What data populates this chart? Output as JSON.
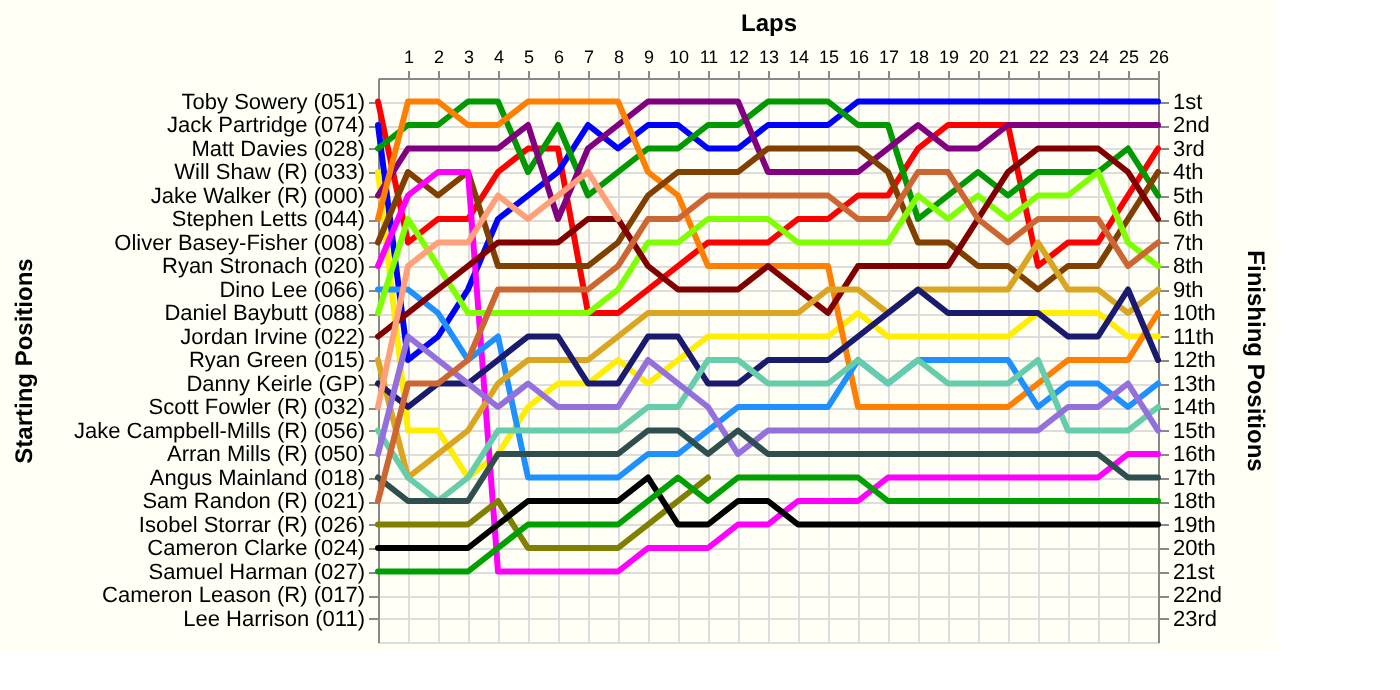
{
  "chart_data": {
    "type": "line",
    "xlabel": "Laps",
    "y2label": "Finishing Positions",
    "x": [
      0,
      1,
      2,
      3,
      4,
      5,
      6,
      7,
      8,
      9,
      10,
      11,
      12,
      13,
      14,
      15,
      16,
      17,
      18,
      19,
      20,
      21,
      22,
      23,
      24,
      25,
      26
    ],
    "xlim": [
      0,
      26
    ],
    "xticks": [
      1,
      2,
      3,
      4,
      5,
      6,
      7,
      8,
      9,
      10,
      11,
      12,
      13,
      14,
      15,
      16,
      17,
      18,
      19,
      20,
      21,
      22,
      23,
      24,
      25,
      26
    ],
    "ylim": [
      24,
      0
    ],
    "yticks": [
      {
        "value": 1,
        "label": "1st"
      },
      {
        "value": 2,
        "label": "2nd"
      },
      {
        "value": 3,
        "label": "3rd"
      },
      {
        "value": 4,
        "label": "4th"
      },
      {
        "value": 5,
        "label": "5th"
      },
      {
        "value": 6,
        "label": "6th"
      },
      {
        "value": 7,
        "label": "7th"
      },
      {
        "value": 8,
        "label": "8th"
      },
      {
        "value": 9,
        "label": "9th"
      },
      {
        "value": 10,
        "label": "10th"
      },
      {
        "value": 11,
        "label": "11th"
      },
      {
        "value": 12,
        "label": "12th"
      },
      {
        "value": 13,
        "label": "13th"
      },
      {
        "value": 14,
        "label": "14th"
      },
      {
        "value": 15,
        "label": "15th"
      },
      {
        "value": 16,
        "label": "16th"
      },
      {
        "value": 17,
        "label": "17th"
      },
      {
        "value": 18,
        "label": "18th"
      },
      {
        "value": 19,
        "label": "19th"
      },
      {
        "value": 20,
        "label": "20th"
      },
      {
        "value": 21,
        "label": "21st"
      },
      {
        "value": 22,
        "label": "22nd"
      },
      {
        "value": 23,
        "label": "23rd"
      }
    ],
    "grid": true,
    "line_style": "solid",
    "annotations": [
      "Starting Positions",
      "Cameron Leason (R) (017)",
      "Lee Harrison (011)"
    ],
    "series": [
      {
        "name": "Toby Sowery (051)",
        "color": "#ff0000",
        "values": [
          1,
          7,
          6,
          6,
          4,
          3,
          3,
          10,
          10,
          9,
          8,
          7,
          7,
          7,
          6,
          6,
          5,
          5,
          3,
          2,
          2,
          2,
          8,
          7,
          7,
          5,
          3
        ]
      },
      {
        "name": "Jack Partridge (074)",
        "color": "#0000ff",
        "values": [
          2,
          12,
          11,
          9,
          6,
          5,
          4,
          2,
          3,
          2,
          2,
          3,
          3,
          2,
          2,
          2,
          1,
          1,
          1,
          1,
          1,
          1,
          1,
          1,
          1,
          1,
          1
        ]
      },
      {
        "name": "Matt Davies (028)",
        "color": "#009900",
        "values": [
          3,
          2,
          2,
          1,
          1,
          4,
          2,
          5,
          4,
          3,
          3,
          2,
          2,
          1,
          1,
          1,
          2,
          2,
          6,
          5,
          4,
          5,
          4,
          4,
          4,
          3,
          5
        ]
      },
      {
        "name": "Will Shaw  (R) (033)",
        "color": "#ffee00",
        "values": [
          4,
          15,
          15,
          17,
          16,
          14,
          13,
          13,
          12,
          13,
          12,
          11,
          11,
          11,
          11,
          11,
          10,
          11,
          11,
          11,
          11,
          11,
          10,
          10,
          10,
          11,
          11
        ]
      },
      {
        "name": "Jake Walker (R) (000)",
        "color": "#800080",
        "values": [
          5,
          3,
          3,
          3,
          3,
          2,
          6,
          3,
          2,
          1,
          1,
          1,
          1,
          4,
          4,
          4,
          4,
          3,
          2,
          3,
          3,
          2,
          2,
          2,
          2,
          2,
          2
        ]
      },
      {
        "name": "Stephen Letts (044)",
        "color": "#ff8000",
        "values": [
          6,
          1,
          1,
          2,
          2,
          1,
          1,
          1,
          1,
          4,
          5,
          8,
          8,
          8,
          8,
          8,
          14,
          14,
          14,
          14,
          14,
          14,
          13,
          12,
          12,
          12,
          10
        ]
      },
      {
        "name": "Oliver Basey-Fisher (008)",
        "color": "#804000",
        "values": [
          7,
          4,
          5,
          4,
          8,
          8,
          8,
          8,
          7,
          5,
          4,
          4,
          4,
          3,
          3,
          3,
          3,
          4,
          7,
          7,
          8,
          8,
          9,
          8,
          8,
          6,
          4
        ]
      },
      {
        "name": "Ryan Stronach (020)",
        "color": "#ff00ff",
        "values": [
          8,
          5,
          4,
          4,
          21,
          21,
          21,
          21,
          21,
          20,
          20,
          20,
          19,
          19,
          18,
          18,
          18,
          17,
          17,
          17,
          17,
          17,
          17,
          17,
          17,
          16,
          16
        ]
      },
      {
        "name": "Dino Lee (066)",
        "color": "#1e90ff",
        "values": [
          9,
          9,
          10,
          12,
          11,
          17,
          17,
          17,
          17,
          16,
          16,
          15,
          14,
          14,
          14,
          14,
          12,
          13,
          12,
          12,
          12,
          12,
          14,
          13,
          13,
          14,
          13
        ]
      },
      {
        "name": "Daniel Baybutt (088)",
        "color": "#80ff00",
        "values": [
          10,
          6,
          8,
          10,
          10,
          10,
          10,
          10,
          9,
          7,
          7,
          6,
          6,
          6,
          7,
          7,
          7,
          7,
          5,
          6,
          5,
          6,
          5,
          5,
          4,
          7,
          8
        ]
      },
      {
        "name": "Jordan Irvine (022)",
        "color": "#800000",
        "values": [
          11,
          10,
          9,
          8,
          7,
          7,
          7,
          6,
          6,
          8,
          9,
          9,
          9,
          8,
          9,
          10,
          8,
          8,
          8,
          8,
          6,
          4,
          3,
          3,
          3,
          4,
          6
        ]
      },
      {
        "name": "Ryan Green (015)",
        "color": "#daa520",
        "values": [
          12,
          17,
          16,
          15,
          13,
          12,
          12,
          12,
          11,
          10,
          10,
          10,
          10,
          10,
          10,
          9,
          9,
          10,
          9,
          9,
          9,
          9,
          7,
          9,
          9,
          10,
          9
        ]
      },
      {
        "name": "Danny Keirle (GP)",
        "color": "#1a1a6e",
        "values": [
          13,
          14,
          13,
          13,
          12,
          11,
          11,
          13,
          13,
          11,
          11,
          13,
          13,
          12,
          12,
          12,
          11,
          10,
          9,
          10,
          10,
          10,
          10,
          11,
          11,
          9,
          12
        ]
      },
      {
        "name": "Scott Fowler (R) (032)",
        "color": "#ffa07a",
        "values": [
          14,
          8,
          7,
          7,
          5,
          6,
          5,
          4,
          6,
          null,
          null,
          null,
          null,
          null,
          null,
          null,
          null,
          null,
          null,
          null,
          null,
          null,
          null,
          null,
          null,
          null,
          null
        ]
      },
      {
        "name": "Jake Campbell-Mills (R) (056)",
        "color": "#66cdaa",
        "values": [
          15,
          17,
          18,
          17,
          15,
          15,
          15,
          15,
          15,
          14,
          14,
          12,
          12,
          13,
          13,
          13,
          12,
          13,
          12,
          13,
          13,
          13,
          12,
          15,
          15,
          15,
          14
        ]
      },
      {
        "name": "Arran Mills (R) (050)",
        "color": "#9370db",
        "values": [
          16,
          11,
          12,
          13,
          14,
          13,
          14,
          14,
          14,
          12,
          13,
          14,
          16,
          15,
          15,
          15,
          15,
          15,
          15,
          15,
          15,
          15,
          15,
          14,
          14,
          13,
          15
        ]
      },
      {
        "name": "Angus Mainland (018)",
        "color": "#2f4f4f",
        "values": [
          17,
          18,
          18,
          18,
          16,
          16,
          16,
          16,
          16,
          15,
          15,
          16,
          15,
          16,
          16,
          16,
          16,
          16,
          16,
          16,
          16,
          16,
          16,
          16,
          16,
          17,
          17
        ]
      },
      {
        "name": "Sam Randon (R) (021)",
        "color": "#cc6633",
        "values": [
          18,
          13,
          13,
          12,
          9,
          9,
          9,
          9,
          8,
          6,
          6,
          5,
          5,
          5,
          5,
          5,
          6,
          6,
          4,
          4,
          6,
          7,
          6,
          6,
          6,
          8,
          7
        ]
      },
      {
        "name": "Isobel Storrar (R) (026)",
        "color": "#808000",
        "values": [
          19,
          19,
          19,
          19,
          18,
          20,
          20,
          20,
          20,
          19,
          18,
          17,
          null,
          null,
          null,
          null,
          null,
          null,
          null,
          null,
          null,
          null,
          null,
          null,
          null,
          null,
          null
        ]
      },
      {
        "name": "Cameron Clarke (024)",
        "color": "#000000",
        "values": [
          20,
          20,
          20,
          20,
          19,
          18,
          18,
          18,
          18,
          17,
          19,
          19,
          18,
          18,
          19,
          19,
          19,
          19,
          19,
          19,
          19,
          19,
          19,
          19,
          19,
          19,
          19
        ]
      },
      {
        "name": "Samuel Harman (027)",
        "color": "#00a000",
        "values": [
          21,
          21,
          21,
          21,
          20,
          19,
          19,
          19,
          19,
          18,
          17,
          18,
          17,
          17,
          17,
          17,
          17,
          18,
          18,
          18,
          18,
          18,
          18,
          18,
          18,
          18,
          18
        ]
      }
    ]
  }
}
